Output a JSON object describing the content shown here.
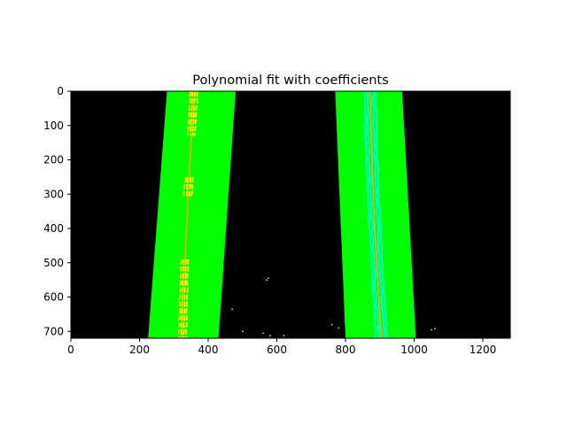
{
  "chart_data": {
    "type": "image",
    "title": "Polynomial fit with coefficients",
    "xlim": [
      0,
      1280
    ],
    "ylim": [
      720,
      0
    ],
    "x_ticks": [
      0,
      200,
      400,
      600,
      800,
      1000,
      1200
    ],
    "y_ticks": [
      0,
      100,
      200,
      300,
      400,
      500,
      600,
      700
    ],
    "background_color": "#000000",
    "lane_window_color": "#00ff00",
    "left_pixel_color": "#ffff00",
    "right_pixel_color": "#00ffff",
    "fit_line_color": "#ffa500",
    "noise_color": "#ffffff",
    "lanes": [
      {
        "name": "left",
        "window_top": [
          280,
          480
        ],
        "window_bottom": [
          225,
          430
        ],
        "fit": [
          [
            0,
            358
          ],
          [
            100,
            353
          ],
          [
            200,
            347
          ],
          [
            300,
            342
          ],
          [
            400,
            337
          ],
          [
            500,
            332
          ],
          [
            600,
            328
          ],
          [
            720,
            325
          ]
        ],
        "pixel_clusters": [
          {
            "x": [
              355,
              395
            ],
            "y": [
              0,
              130
            ]
          },
          {
            "x": [
              330,
              365
            ],
            "y": [
              250,
              310
            ]
          },
          {
            "x": [
              315,
              350
            ],
            "y": [
              490,
              720
            ]
          }
        ]
      },
      {
        "name": "right",
        "window_top": [
          770,
          965
        ],
        "window_bottom": [
          800,
          1005
        ],
        "fit": [
          [
            0,
            872
          ],
          [
            100,
            874
          ],
          [
            200,
            877
          ],
          [
            300,
            881
          ],
          [
            400,
            886
          ],
          [
            500,
            891
          ],
          [
            600,
            897
          ],
          [
            720,
            905
          ]
        ],
        "pixel_clusters": [
          {
            "x": [
              840,
              920
            ],
            "y": [
              0,
              720
            ]
          }
        ]
      }
    ],
    "noise_points": [
      [
        570,
        550
      ],
      [
        575,
        545
      ],
      [
        470,
        635
      ],
      [
        500,
        700
      ],
      [
        560,
        705
      ],
      [
        580,
        712
      ],
      [
        620,
        712
      ],
      [
        760,
        680
      ],
      [
        780,
        690
      ],
      [
        1050,
        695
      ],
      [
        1060,
        692
      ]
    ]
  }
}
